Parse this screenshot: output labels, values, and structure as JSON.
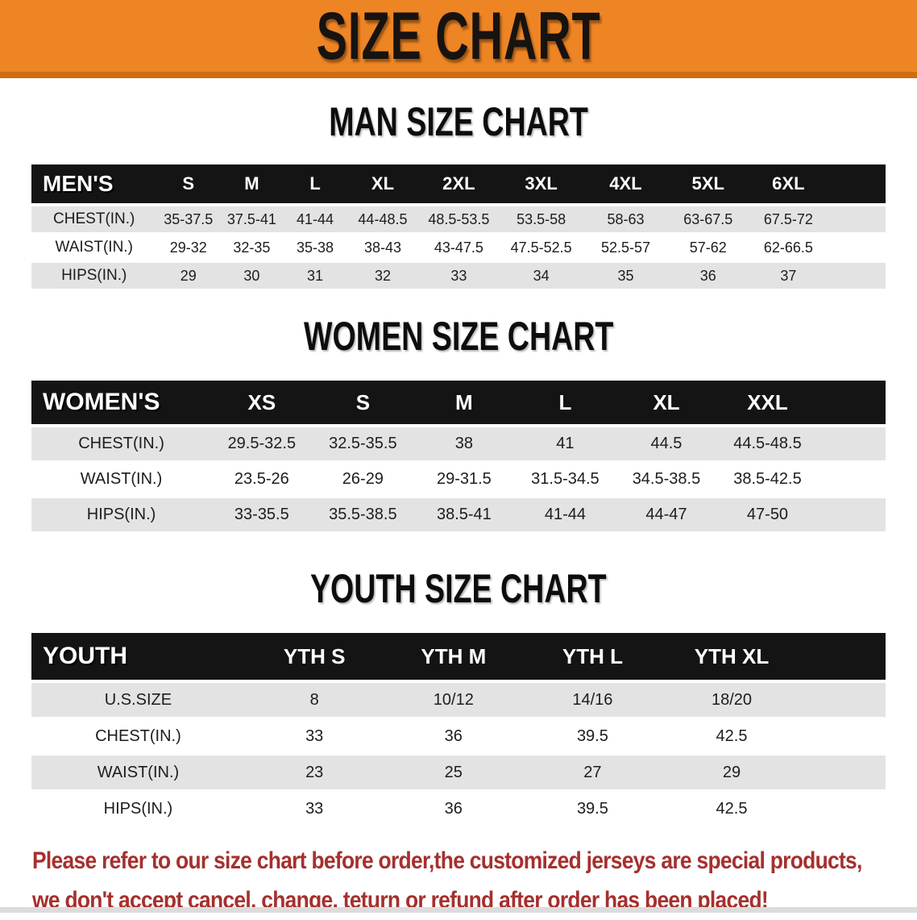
{
  "banner": {
    "title": "SIZE CHART"
  },
  "sections": [
    {
      "heading": "MAN SIZE CHART",
      "table": {
        "header": [
          "MEN'S",
          "S",
          "M",
          "L",
          "XL",
          "2XL",
          "3XL",
          "4XL",
          "5XL",
          "6XL"
        ],
        "rows": [
          [
            "CHEST(IN.)",
            "35-37.5",
            "37.5-41",
            "41-44",
            "44-48.5",
            "48.5-53.5",
            "53.5-58",
            "58-63",
            "63-67.5",
            "67.5-72"
          ],
          [
            "WAIST(IN.)",
            "29-32",
            "32-35",
            "35-38",
            "38-43",
            "43-47.5",
            "47.5-52.5",
            "52.5-57",
            "57-62",
            "62-66.5"
          ],
          [
            "HIPS(IN.)",
            "29",
            "30",
            "31",
            "32",
            "33",
            "34",
            "35",
            "36",
            "37"
          ]
        ]
      }
    },
    {
      "heading": "WOMEN SIZE CHART",
      "table": {
        "header": [
          "WOMEN'S",
          "XS",
          "S",
          "M",
          "L",
          "XL",
          "XXL"
        ],
        "rows": [
          [
            "CHEST(IN.)",
            "29.5-32.5",
            "32.5-35.5",
            "38",
            "41",
            "44.5",
            "44.5-48.5"
          ],
          [
            "WAIST(IN.)",
            "23.5-26",
            "26-29",
            "29-31.5",
            "31.5-34.5",
            "34.5-38.5",
            "38.5-42.5"
          ],
          [
            "HIPS(IN.)",
            "33-35.5",
            "35.5-38.5",
            "38.5-41",
            "41-44",
            "44-47",
            "47-50"
          ]
        ]
      }
    },
    {
      "heading": "YOUTH SIZE CHART",
      "table": {
        "header": [
          "YOUTH",
          "YTH S",
          "YTH M",
          "YTH L",
          "YTH XL"
        ],
        "rows": [
          [
            "U.S.SIZE",
            "8",
            "10/12",
            "14/16",
            "18/20"
          ],
          [
            "CHEST(IN.)",
            "33",
            "36",
            "39.5",
            "42.5"
          ],
          [
            "WAIST(IN.)",
            "23",
            "25",
            "27",
            "29"
          ],
          [
            "HIPS(IN.)",
            "33",
            "36",
            "39.5",
            "42.5"
          ]
        ]
      }
    }
  ],
  "disclaimer": {
    "line1": "Please refer to our size chart before order,the customized jerseys are special products,",
    "line2": "we don't accept cancel, change, teturn or refund after order has been placed!"
  },
  "colors": {
    "banner_bg": "#ee8525",
    "banner_border": "#cf6d12",
    "banner_text": "#171310",
    "header_bar_bg": "#141414",
    "header_bar_text": "#ffffff",
    "row_stripe": "#e3e3e3",
    "body_text": "#1d1d1d",
    "disclaimer_text": "#a5302e"
  }
}
